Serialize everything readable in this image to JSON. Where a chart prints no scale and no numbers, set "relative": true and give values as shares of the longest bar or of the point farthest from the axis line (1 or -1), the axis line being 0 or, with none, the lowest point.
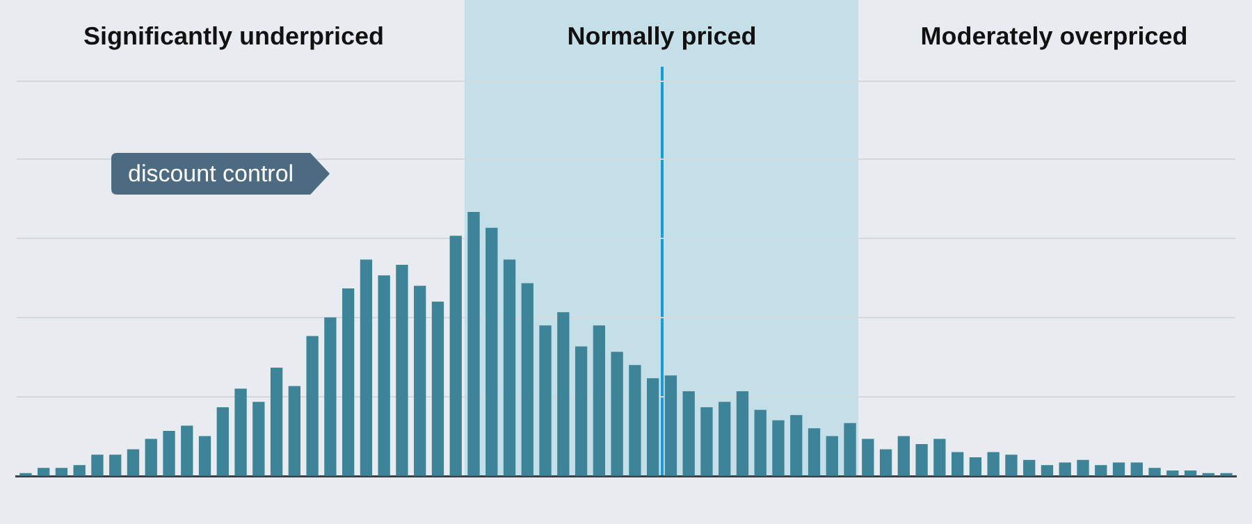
{
  "chart_data": {
    "type": "bar",
    "relative": true,
    "grid": "y",
    "categories": [
      null,
      null,
      null,
      null,
      null,
      null,
      null,
      null,
      null,
      null,
      null,
      null,
      null,
      null,
      null,
      null,
      null,
      null,
      null,
      null,
      null,
      null,
      null,
      null,
      null,
      null,
      null,
      null,
      null,
      null,
      null,
      null,
      null,
      null,
      null,
      null,
      null,
      null,
      null,
      null,
      null,
      null,
      null,
      null,
      null,
      null,
      null,
      null,
      null,
      null,
      null,
      null,
      null,
      null,
      null,
      null,
      null,
      null,
      null,
      null,
      null,
      null,
      null,
      null,
      null,
      null,
      null,
      null
    ],
    "series": [
      {
        "color": "#3d8499",
        "values": [
          0.01,
          0.03,
          0.03,
          0.04,
          0.08,
          0.08,
          0.1,
          0.14,
          0.17,
          0.19,
          0.15,
          0.26,
          0.33,
          0.28,
          0.41,
          0.34,
          0.53,
          0.6,
          0.71,
          0.82,
          0.76,
          0.8,
          0.72,
          0.66,
          0.91,
          1,
          0.94,
          0.82,
          0.73,
          0.57,
          0.62,
          0.49,
          0.57,
          0.47,
          0.42,
          0.37,
          0.38,
          0.32,
          0.26,
          0.28,
          0.32,
          0.25,
          0.21,
          0.23,
          0.18,
          0.15,
          0.2,
          0.14,
          0.1,
          0.15,
          0.12,
          0.14,
          0.09,
          0.07,
          0.09,
          0.08,
          0.06,
          0.04,
          0.05,
          0.06,
          0.04,
          0.05,
          0.05,
          0.03,
          0.02,
          0.02,
          0.01,
          0.01
        ]
      }
    ],
    "annotations": [
      "Significantly underpriced",
      "Normally priced",
      "Moderately overpriced",
      "discount control"
    ]
  }
}
